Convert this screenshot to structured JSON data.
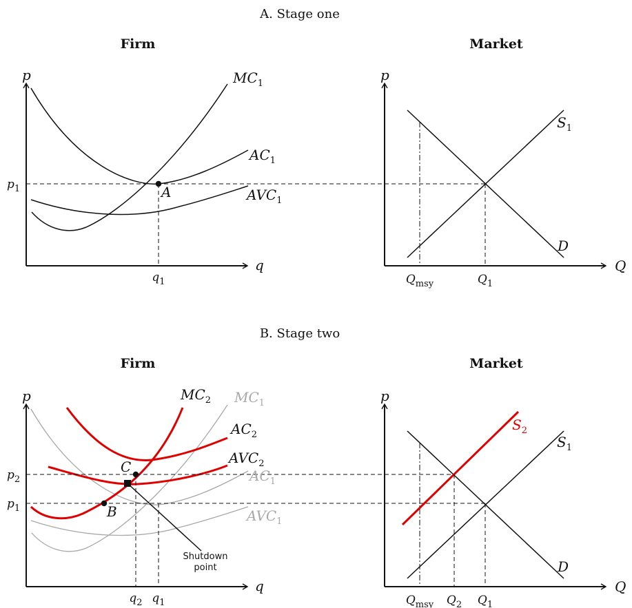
{
  "panel_a": {
    "title": "A. Stage one",
    "firm": {
      "heading": "Firm",
      "y_axis": "p",
      "x_axis": "q",
      "p1": "p1",
      "q1": "q1",
      "mc_label": "MC1",
      "ac_label": "AC1",
      "avc_label": "AVC1",
      "point_label": "A"
    },
    "market": {
      "heading": "Market",
      "y_axis": "p",
      "x_axis": "Q",
      "supply_label": "S1",
      "demand_label": "D",
      "qmsy": "Qmsy",
      "q1": "Q1"
    }
  },
  "panel_b": {
    "title": "B. Stage two",
    "firm": {
      "heading": "Firm",
      "y_axis": "p",
      "x_axis": "q",
      "p2": "p2",
      "p1": "p1",
      "q2": "q2",
      "q1": "q1",
      "mc2_label": "MC2",
      "ac2_label": "AC2",
      "avc2_label": "AVC2",
      "mc1_label": "MC1",
      "ac1_label": "AC1",
      "avc1_label": "AVC1",
      "point_b": "B",
      "point_c": "C",
      "shutdown_line1": "Shutdown",
      "shutdown_line2": "point"
    },
    "market": {
      "heading": "Market",
      "y_axis": "p",
      "x_axis": "Q",
      "supply2_label": "S2",
      "supply1_label": "S1",
      "demand_label": "D",
      "qmsy": "Qmsy",
      "q2": "Q2",
      "q1": "Q1"
    }
  },
  "colors": {
    "highlight": "#e00000",
    "previous": "#a8a8a8",
    "ink": "#111111"
  }
}
